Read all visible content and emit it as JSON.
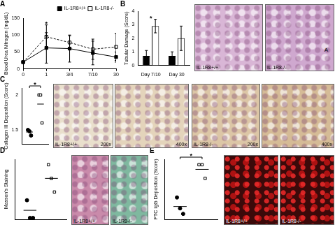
{
  "chart_data": [
    {
      "panel": "A",
      "type": "line",
      "y_label": "Blood Urea Nitrogen (mg/dL)",
      "categories": [
        "0",
        "1",
        "3/4",
        "7/10",
        "30"
      ],
      "series": [
        {
          "name": "IL-1R8+/+",
          "color": "#000000",
          "marker": "square",
          "line_style": "solid",
          "values": [
            20,
            62,
            60,
            47,
            35
          ],
          "errors": [
            3,
            45,
            40,
            35,
            15
          ]
        },
        {
          "name": "IL-1R8-/-",
          "color": "#000000",
          "marker": "open-square",
          "line_style": "dashed",
          "values": [
            20,
            95,
            78,
            58,
            65
          ],
          "errors": [
            3,
            35,
            20,
            30,
            40
          ]
        }
      ],
      "ylim": [
        0,
        150
      ],
      "yticks": [
        0,
        50,
        100,
        150
      ],
      "legend": "top-right",
      "annotations": [
        {
          "text": "*",
          "x": "1"
        }
      ]
    },
    {
      "panel": "B",
      "type": "bar",
      "y_label": "Tubular Damage (Score)",
      "categories": [
        "Day 7/10",
        "Day 30"
      ],
      "series": [
        {
          "name": "IL-1R8+/+",
          "color": "#000000",
          "values": [
            0.7,
            0.7
          ],
          "errors": [
            0.4,
            0.3
          ]
        },
        {
          "name": "IL-1R8-/-",
          "color": "#ffffff",
          "values": [
            2.9,
            2.0
          ],
          "errors": [
            0.5,
            0.9
          ]
        }
      ],
      "ylim": [
        0,
        4
      ],
      "yticks": [
        0,
        1,
        2,
        3,
        4
      ],
      "annotations": [
        {
          "text": "*",
          "x": "Day 7/10"
        }
      ]
    },
    {
      "panel": "C",
      "type": "strip",
      "y_label": "Collagen III Deposition (Score)",
      "series": [
        {
          "name": "IL-1R8+/+",
          "color": "#000000",
          "marker": "circle",
          "values": [
            1.5,
            1.48,
            1.42
          ],
          "mean": 1.47
        },
        {
          "name": "IL-1R8-/-",
          "color": "#000000",
          "marker": "open-square",
          "values": [
            2.0,
            2.0,
            1.6
          ],
          "mean": 1.87
        }
      ],
      "ylim": [
        1.3,
        2.1
      ],
      "yticks": [
        1.5,
        2
      ],
      "annotations": [
        {
          "text": "*"
        }
      ]
    },
    {
      "panel": "D",
      "type": "strip",
      "y_label": "Masson's Staining",
      "series": [
        {
          "name": "IL-1R8+/+",
          "color": "#000000",
          "marker": "circle",
          "values": [
            0.7,
            0.05,
            0.05
          ],
          "mean": 0.33
        },
        {
          "name": "IL-1R8-/-",
          "color": "#000000",
          "marker": "open-square",
          "values": [
            2.0,
            1.5,
            1.0
          ],
          "mean": 1.5
        }
      ],
      "ylim": [
        0,
        2.2
      ],
      "yticks": [
        0,
        1,
        2
      ],
      "tick_labels": false
    },
    {
      "panel": "E",
      "type": "strip",
      "y_label": "PTC IgG Deposition (Score)",
      "series": [
        {
          "name": "IL-1R8+/+",
          "color": "#000000",
          "marker": "circle",
          "values": [
            0.8,
            0.4,
            0.2
          ],
          "mean": 0.47
        },
        {
          "name": "IL-1R8-/-",
          "color": "#000000",
          "marker": "open-square",
          "values": [
            2.0,
            2.0,
            1.5
          ],
          "mean": 1.83
        }
      ],
      "ylim": [
        0,
        2.2
      ],
      "yticks": [
        0,
        1,
        2
      ],
      "tick_labels": false,
      "annotations": [
        {
          "text": "*"
        }
      ]
    }
  ],
  "images": [
    {
      "panel": "B",
      "label": "IL-1R8+/+",
      "color": "#d9b6d6"
    },
    {
      "panel": "B",
      "label": "IL-1R8-/-",
      "annotation": "A",
      "color": "#cfa8cf"
    },
    {
      "panel": "C",
      "label": "IL-1R8+/+",
      "magnification": "200x",
      "color": "#e9dfcc"
    },
    {
      "panel": "C",
      "magnification": "400x",
      "color": "#e4d4bb"
    },
    {
      "panel": "C",
      "label": "IL-1R8-/-",
      "magnification": "200x",
      "color": "#dcc6a6"
    },
    {
      "panel": "C",
      "magnification": "400x",
      "color": "#d5bb96"
    },
    {
      "panel": "D",
      "label": "IL-1R8+/+",
      "color": "#c98aaa"
    },
    {
      "panel": "D",
      "label": "IL-1R8-/-",
      "color": "#7fb89f"
    },
    {
      "panel": "E",
      "label": "IL-1R8+/+",
      "color": "#3b0a0a"
    },
    {
      "panel": "E",
      "label": "IL-1R8-/-",
      "color": "#3b0a0a"
    }
  ]
}
